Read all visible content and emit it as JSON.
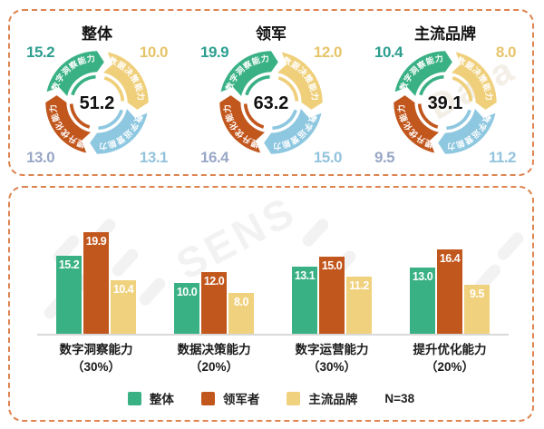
{
  "watermark": {
    "texts": [
      "SENS",
      "Data"
    ]
  },
  "colors": {
    "panel_border": "#de8450",
    "axis_line": "#d9d9d9",
    "value_label_colors": [
      "#2d9e8f",
      "#e6c46a",
      "#93c3dd",
      "#99a7c6"
    ]
  },
  "chart_data": [
    {
      "type": "pie",
      "variant": "arrow-ring",
      "title": "整体",
      "center_total": "51.2",
      "segments": [
        {
          "label": "数字洞察能力",
          "value": 15.2,
          "color": "#3ab185"
        },
        {
          "label": "数据决策能力",
          "value": 10.0,
          "color": "#efcf7a"
        },
        {
          "label": "数字运营能力",
          "value": 13.1,
          "color": "#8ec7e0"
        },
        {
          "label": "提升优化能力",
          "value": 13.0,
          "color": "#c2571e"
        }
      ]
    },
    {
      "type": "pie",
      "variant": "arrow-ring",
      "title": "领军",
      "center_total": "63.2",
      "segments": [
        {
          "label": "数字洞察能力",
          "value": 19.9,
          "color": "#3ab185"
        },
        {
          "label": "数据决策能力",
          "value": 12.0,
          "color": "#efcf7a"
        },
        {
          "label": "数字运营能力",
          "value": 15.0,
          "color": "#8ec7e0"
        },
        {
          "label": "提升优化能力",
          "value": 16.4,
          "color": "#c2571e"
        }
      ]
    },
    {
      "type": "pie",
      "variant": "arrow-ring",
      "title": "主流品牌",
      "center_total": "39.1",
      "segments": [
        {
          "label": "数字洞察能力",
          "value": 10.4,
          "color": "#3ab185"
        },
        {
          "label": "数据决策能力",
          "value": 8.0,
          "color": "#efcf7a"
        },
        {
          "label": "数字运营能力",
          "value": 11.2,
          "color": "#8ec7e0"
        },
        {
          "label": "提升优化能力",
          "value": 9.5,
          "color": "#c2571e"
        }
      ]
    },
    {
      "type": "bar",
      "title": "",
      "categories": [
        "数字洞察能力",
        "数据决策能力",
        "数字运营能力",
        "提升优化能力"
      ],
      "category_weights": [
        "（30%）",
        "（20%）",
        "（30%）",
        "（20%）"
      ],
      "series": [
        {
          "name": "整体",
          "color": "#3ab185",
          "values": [
            15.2,
            10.0,
            13.1,
            13.0
          ]
        },
        {
          "name": "领军者",
          "color": "#c2571e",
          "values": [
            19.9,
            12.0,
            15.0,
            16.4
          ]
        },
        {
          "name": "主流品牌",
          "color": "#f0d17d",
          "values": [
            10.4,
            8.0,
            11.2,
            9.5
          ]
        }
      ],
      "note": "N=38",
      "ylim": [
        0,
        22
      ],
      "grid": false,
      "legend_position": "bottom",
      "value_labels": "inside-top"
    }
  ]
}
